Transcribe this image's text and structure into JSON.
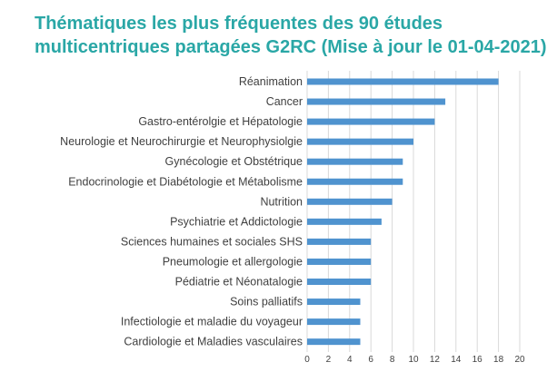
{
  "chart_data": {
    "type": "bar",
    "orientation": "horizontal",
    "title_lines": [
      "Thématiques les plus fréquentes des 90 études",
      "multicentriques partagées G2RC (Mise à jour le 01-04-2021)"
    ],
    "categories": [
      "Réanimation",
      "Cancer",
      "Gastro-entérolgie et Hépatologie",
      "Neurologie et Neurochirurgie et Neurophysiolgie",
      "Gynécologie et Obstétrique",
      "Endocrinologie et Diabétologie et Métabolisme",
      "Nutrition",
      "Psychiatrie et Addictologie",
      "Sciences humaines et sociales SHS",
      "Pneumologie et allergologie",
      "Pédiatrie et Néonatalogie",
      "Soins palliatifs",
      "Infectiologie et maladie du voyageur",
      "Cardiologie et Maladies vasculaires"
    ],
    "values": [
      18,
      13,
      12,
      10,
      9,
      9,
      8,
      7,
      6,
      6,
      6,
      5,
      5,
      5
    ],
    "xlim": [
      0,
      20
    ],
    "x_ticks": [
      0,
      2,
      4,
      6,
      8,
      10,
      12,
      14,
      16,
      18,
      20
    ],
    "grid": "vertical",
    "bar_color": "#4f93cf",
    "title_color": "#2aa7a6",
    "label_color": "#404040",
    "grid_color": "#d9d9d9"
  }
}
